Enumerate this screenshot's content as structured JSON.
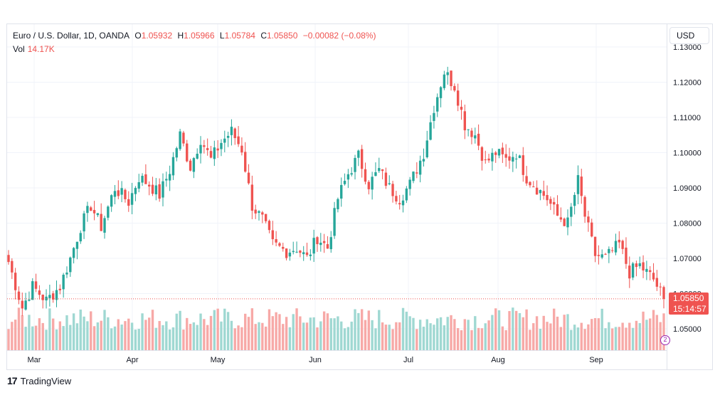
{
  "legend": {
    "symbol": "Euro / U.S. Dollar, 1D, OANDA",
    "open_label": "O",
    "open": "1.05932",
    "high_label": "H",
    "high": "1.05966",
    "low_label": "L",
    "low": "1.05784",
    "close_label": "C",
    "close": "1.05850",
    "change": "−0.00082 (−0.08%)",
    "vol_label": "Vol",
    "vol": "14.17K"
  },
  "currency_button": "USD",
  "last_price": {
    "price": "1.05850",
    "countdown": "15:14:57"
  },
  "marker_label": "2",
  "brand": "TradingView",
  "colors": {
    "up": "#26a69a",
    "down": "#ef5350",
    "up_vol": "#9fd8d2",
    "down_vol": "#f7a9a7"
  },
  "chart_data": {
    "type": "candlestick",
    "title": "Euro / U.S. Dollar, 1D, OANDA",
    "y_ticks": [
      "1.05000",
      "1.06000",
      "1.07000",
      "1.08000",
      "1.09000",
      "1.10000",
      "1.11000",
      "1.12000",
      "1.13000"
    ],
    "x_ticks": [
      "Mar",
      "Apr",
      "May",
      "Jun",
      "Jul",
      "Aug",
      "Sep"
    ],
    "ylim": [
      1.045,
      1.133
    ],
    "grid": true,
    "last_price": 1.0585,
    "close_path": [
      [
        0,
        1.069
      ],
      [
        4,
        1.056
      ],
      [
        7,
        1.062
      ],
      [
        11,
        1.058
      ],
      [
        15,
        1.062
      ],
      [
        18,
        1.07
      ],
      [
        21,
        1.079
      ],
      [
        24,
        1.085
      ],
      [
        27,
        1.079
      ],
      [
        31,
        1.09
      ],
      [
        35,
        1.086
      ],
      [
        38,
        1.093
      ],
      [
        41,
        1.091
      ],
      [
        44,
        1.088
      ],
      [
        47,
        1.095
      ],
      [
        50,
        1.105
      ],
      [
        53,
        1.096
      ],
      [
        56,
        1.104
      ],
      [
        59,
        1.098
      ],
      [
        62,
        1.103
      ],
      [
        65,
        1.106
      ],
      [
        68,
        1.101
      ],
      [
        71,
        1.085
      ],
      [
        74,
        1.081
      ],
      [
        77,
        1.074
      ],
      [
        81,
        1.072
      ],
      [
        84,
        1.073
      ],
      [
        87,
        1.07
      ],
      [
        90,
        1.076
      ],
      [
        93,
        1.073
      ],
      [
        96,
        1.087
      ],
      [
        99,
        1.094
      ],
      [
        102,
        1.099
      ],
      [
        105,
        1.091
      ],
      [
        108,
        1.095
      ],
      [
        111,
        1.09
      ],
      [
        114,
        1.087
      ],
      [
        117,
        1.091
      ],
      [
        121,
        1.1
      ],
      [
        124,
        1.113
      ],
      [
        127,
        1.123
      ],
      [
        130,
        1.119
      ],
      [
        133,
        1.108
      ],
      [
        136,
        1.105
      ],
      [
        139,
        1.097
      ],
      [
        142,
        1.1
      ],
      [
        145,
        1.098
      ],
      [
        148,
        1.1
      ],
      [
        151,
        1.093
      ],
      [
        154,
        1.09
      ],
      [
        157,
        1.087
      ],
      [
        160,
        1.082
      ],
      [
        163,
        1.08
      ],
      [
        166,
        1.092
      ],
      [
        168,
        1.082
      ],
      [
        171,
        1.071
      ],
      [
        174,
        1.07
      ],
      [
        178,
        1.074
      ],
      [
        181,
        1.066
      ],
      [
        184,
        1.068
      ],
      [
        188,
        1.064
      ],
      [
        191,
        1.0585
      ]
    ],
    "volume_range": [
      0.35,
      1.0
    ]
  }
}
